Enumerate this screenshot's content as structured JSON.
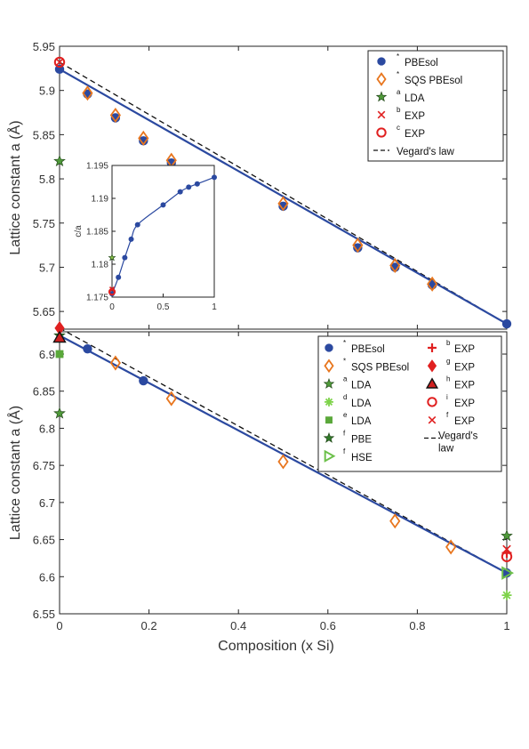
{
  "chart_data": [
    {
      "type": "line",
      "panel": "top",
      "ylabel": "Lattice constant a (Å)",
      "xlim": [
        0,
        1
      ],
      "ylim": [
        5.63,
        5.95
      ],
      "yticks": [
        "5.65",
        "5.7",
        "5.75",
        "5.8",
        "5.85",
        "5.9",
        "5.95"
      ],
      "grid": false,
      "legend_position": "top-right",
      "series": [
        {
          "name": "PBEsol",
          "sup": "*",
          "marker": "circle",
          "color": "#2b49a0",
          "x": [
            0,
            0.0625,
            0.125,
            0.1875,
            0.25,
            0.3333,
            0.5,
            0.6667,
            0.75,
            0.8333,
            1
          ],
          "y": [
            5.924,
            5.896,
            5.869,
            5.843,
            5.818,
            5.784,
            5.769,
            5.722,
            5.7,
            5.68,
            5.636
          ]
        },
        {
          "name": "SQS PBEsol",
          "sup": "*",
          "marker": "diamond",
          "color": "#e8761e",
          "x": [
            0.0625,
            0.125,
            0.1875,
            0.25,
            0.5,
            0.6667,
            0.75,
            0.8333
          ],
          "y": [
            5.897,
            5.872,
            5.846,
            5.821,
            5.772,
            5.725,
            5.702,
            5.681
          ]
        },
        {
          "name": "LDA",
          "sup": "a",
          "marker": "star",
          "color": "#4f9a3a",
          "x": [
            0
          ],
          "y": [
            5.82
          ]
        },
        {
          "name": "EXP",
          "sup": "b",
          "marker": "x",
          "color": "#e02020",
          "x": [
            0
          ],
          "y": [
            5.932
          ]
        },
        {
          "name": "EXP",
          "sup": "c",
          "marker": "open-circle",
          "color": "#e02020",
          "x": [
            0
          ],
          "y": [
            5.932
          ]
        },
        {
          "name": "Vegard's law",
          "marker": "dashed-line",
          "color": "#111111",
          "x": [
            0,
            1
          ],
          "y": [
            5.932,
            5.636
          ]
        }
      ],
      "fit_line": {
        "color": "#2b49a0",
        "x": [
          0,
          1
        ],
        "y": [
          5.924,
          5.636
        ]
      },
      "inset": {
        "ylabel": "c/a",
        "xlim": [
          0,
          1
        ],
        "ylim": [
          1.175,
          1.195
        ],
        "xticks": [
          "0",
          "0.5",
          "1"
        ],
        "yticks": [
          "1.175",
          "1.18",
          "1.185",
          "1.19",
          "1.195"
        ],
        "points": {
          "x": [
            0,
            0.0625,
            0.125,
            0.1875,
            0.25,
            0.5,
            0.6667,
            0.75,
            0.8333,
            1
          ],
          "y": [
            1.1755,
            1.178,
            1.181,
            1.1838,
            1.186,
            1.189,
            1.191,
            1.1917,
            1.1922,
            1.1932
          ]
        },
        "extra": [
          {
            "marker": "star",
            "color": "#8ac24a",
            "x": 0,
            "y": 1.181
          },
          {
            "marker": "x",
            "color": "#e02020",
            "x": 0,
            "y": 1.1762
          },
          {
            "marker": "open-circle",
            "color": "#e02020",
            "x": 0,
            "y": 1.1758
          }
        ]
      }
    },
    {
      "type": "line",
      "panel": "bottom",
      "xlabel": "Composition (x Si)",
      "ylabel": "Lattice constant a (Å)",
      "xlim": [
        0,
        1
      ],
      "ylim": [
        6.55,
        6.93
      ],
      "xticks": [
        "0",
        "0.2",
        "0.4",
        "0.6",
        "0.8",
        "1"
      ],
      "yticks": [
        "6.55",
        "6.6",
        "6.65",
        "6.7",
        "6.75",
        "6.8",
        "6.85",
        "6.9"
      ],
      "grid": false,
      "legend_position": "top-right",
      "series": [
        {
          "name": "PBEsol",
          "sup": "*",
          "marker": "circle",
          "color": "#2b49a0",
          "x": [
            0.0625,
            0.1875,
            1
          ],
          "y": [
            6.907,
            6.864,
            6.605
          ]
        },
        {
          "name": "SQS PBEsol",
          "sup": "*",
          "marker": "diamond",
          "color": "#e8761e",
          "x": [
            0.125,
            0.25,
            0.5,
            0.75,
            0.875
          ],
          "y": [
            6.888,
            6.84,
            6.755,
            6.675,
            6.64
          ]
        },
        {
          "name": "LDA",
          "sup": "a",
          "marker": "star",
          "color": "#4f9a3a",
          "x": [
            0,
            1
          ],
          "y": [
            6.82,
            6.655
          ]
        },
        {
          "name": "LDA",
          "sup": "d",
          "marker": "asterisk",
          "color": "#7ed34a",
          "x": [
            1
          ],
          "y": [
            6.575
          ]
        },
        {
          "name": "LDA",
          "sup": "e",
          "marker": "square",
          "color": "#5aa83a",
          "x": [
            0
          ],
          "y": [
            6.9
          ]
        },
        {
          "name": "PBE",
          "sup": "f",
          "marker": "star",
          "color": "#2f7a28",
          "x": [
            0
          ],
          "y": [
            6.925
          ]
        },
        {
          "name": "HSE",
          "sup": "f",
          "marker": "triangle-right",
          "color": "#6cc04a",
          "x": [
            1
          ],
          "y": [
            6.605
          ]
        },
        {
          "name": "EXP",
          "sup": "b",
          "marker": "plus",
          "color": "#e02020",
          "x": [
            1
          ],
          "y": [
            6.632
          ]
        },
        {
          "name": "EXP",
          "sup": "g",
          "marker": "filled-diamond",
          "color": "#e02020",
          "x": [
            0
          ],
          "y": [
            6.935
          ]
        },
        {
          "name": "EXP",
          "sup": "h",
          "marker": "triangle",
          "color": "#d02020",
          "x": [
            0
          ],
          "y": [
            6.922
          ]
        },
        {
          "name": "EXP",
          "sup": "i",
          "marker": "open-circle",
          "color": "#e02020",
          "x": [
            1
          ],
          "y": [
            6.627
          ]
        },
        {
          "name": "EXP",
          "sup": "f",
          "marker": "x",
          "color": "#e02020",
          "x": [
            1
          ],
          "y": [
            6.637
          ]
        },
        {
          "name": "Vegard's law",
          "marker": "dashed-line",
          "color": "#111111",
          "x": [
            0,
            1
          ],
          "y": [
            6.935,
            6.605
          ]
        }
      ],
      "fit_line": {
        "color": "#2b49a0",
        "x": [
          0,
          1
        ],
        "y": [
          6.925,
          6.605
        ]
      }
    }
  ]
}
